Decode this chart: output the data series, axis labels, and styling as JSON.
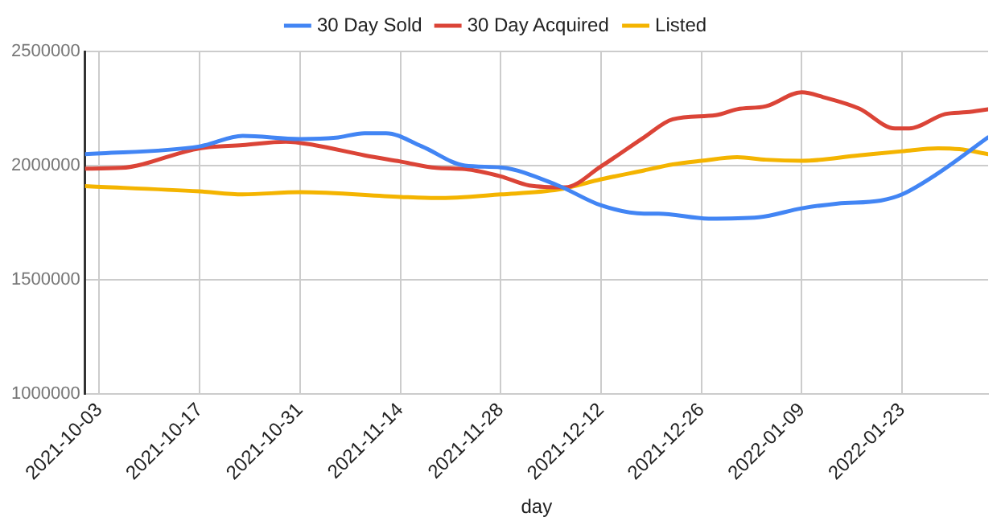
{
  "chart_data": {
    "type": "line",
    "xlabel": "day",
    "xlim": [
      "2021-10-01",
      "2022-02-04"
    ],
    "xticks": [
      "2021-10-03",
      "2021-10-17",
      "2021-10-31",
      "2021-11-14",
      "2021-11-28",
      "2021-12-12",
      "2021-12-26",
      "2022-01-09",
      "2022-01-23"
    ],
    "ylim": [
      1000000,
      2500000
    ],
    "yticks": [
      1000000,
      1500000,
      2000000,
      2500000
    ],
    "grid": true,
    "legend": "top",
    "marker": "none",
    "line_style": "solid",
    "series": [
      {
        "name": "30 Day Sold",
        "color": "#4285f4",
        "x": [
          "2021-10-01",
          "2021-10-17",
          "2021-10-23",
          "2021-10-31",
          "2021-11-05",
          "2021-11-09",
          "2021-11-12",
          "2021-11-17",
          "2021-11-23",
          "2021-11-28",
          "2021-12-06",
          "2021-12-12",
          "2021-12-18",
          "2021-12-20",
          "2021-12-27",
          "2022-01-03",
          "2022-01-09",
          "2022-01-14",
          "2022-01-20",
          "2022-01-23",
          "2022-01-28",
          "2022-02-04"
        ],
        "values": [
          2050000,
          2084000,
          2130000,
          2116000,
          2122000,
          2142000,
          2142000,
          2084000,
          2000000,
          1992000,
          1913000,
          1826000,
          1790000,
          1790000,
          1768000,
          1774000,
          1813000,
          1834000,
          1847000,
          1874000,
          1966000,
          2124000
        ]
      },
      {
        "name": "30 Day Acquired",
        "color": "#db4437",
        "x": [
          "2021-10-01",
          "2021-10-06",
          "2021-10-17",
          "2021-10-23",
          "2021-10-29",
          "2021-11-02",
          "2021-11-09",
          "2021-11-14",
          "2021-11-19",
          "2021-11-23",
          "2021-11-28",
          "2021-12-02",
          "2021-12-07",
          "2021-12-12",
          "2021-12-18",
          "2021-12-22",
          "2021-12-28",
          "2021-12-31",
          "2022-01-04",
          "2022-01-09",
          "2022-01-12",
          "2022-01-17",
          "2022-01-22",
          "2022-01-24",
          "2022-01-29",
          "2022-02-01",
          "2022-02-04"
        ],
        "values": [
          1987000,
          1990000,
          2076000,
          2090000,
          2105000,
          2090000,
          2045000,
          2018000,
          1990000,
          1985000,
          1953000,
          1913000,
          1905000,
          1997000,
          2124000,
          2203000,
          2221000,
          2247000,
          2260000,
          2321000,
          2300000,
          2250000,
          2163000,
          2163000,
          2226000,
          2234000,
          2247000
        ]
      },
      {
        "name": "Listed",
        "color": "#f4b400",
        "x": [
          "2021-10-01",
          "2021-10-17",
          "2021-10-23",
          "2021-10-31",
          "2021-11-14",
          "2021-11-19",
          "2021-11-28",
          "2021-12-06",
          "2021-12-12",
          "2021-12-18",
          "2021-12-22",
          "2021-12-26",
          "2021-12-31",
          "2022-01-04",
          "2022-01-09",
          "2022-01-17",
          "2022-01-23",
          "2022-01-28",
          "2022-01-31",
          "2022-02-04"
        ],
        "values": [
          1910000,
          1887000,
          1874000,
          1884000,
          1863000,
          1858000,
          1874000,
          1895000,
          1940000,
          1979000,
          2005000,
          2021000,
          2037000,
          2026000,
          2021000,
          2045000,
          2063000,
          2076000,
          2072000,
          2050000
        ]
      }
    ]
  }
}
